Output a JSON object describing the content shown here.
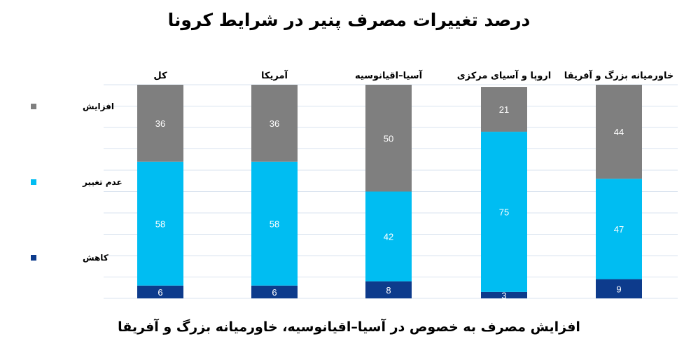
{
  "title": "درصد تغییرات مصرف پنیر در شرایط کرونا",
  "footer": "افزایش مصرف  به خصوص در آسیا–اقیانوسیه، خاورمیانه بزرگ و آفریقا",
  "colors": {
    "increase": "#7f7f7f",
    "no_change": "#00bdf2",
    "decrease": "#0d3b8c",
    "grid": "#d9e3ef"
  },
  "chart_data": {
    "type": "bar",
    "stacked": true,
    "categories": [
      "کل",
      "آمریکا",
      "آسیا–اقیانوسیه",
      "اروپا و آسیای مرکزی",
      "خاورمیانه بزرگ و آفریقا"
    ],
    "series": [
      {
        "name": "کاهش",
        "key": "decrease",
        "values": [
          6,
          6,
          8,
          3,
          9
        ]
      },
      {
        "name": "عدم تغییر",
        "key": "no_change",
        "values": [
          58,
          58,
          42,
          75,
          47
        ]
      },
      {
        "name": "افزایش",
        "key": "increase",
        "values": [
          36,
          36,
          50,
          21,
          44
        ]
      }
    ],
    "ylim": [
      0,
      100
    ],
    "grid": true,
    "legend_position": "left",
    "category_labels_position": "top"
  }
}
